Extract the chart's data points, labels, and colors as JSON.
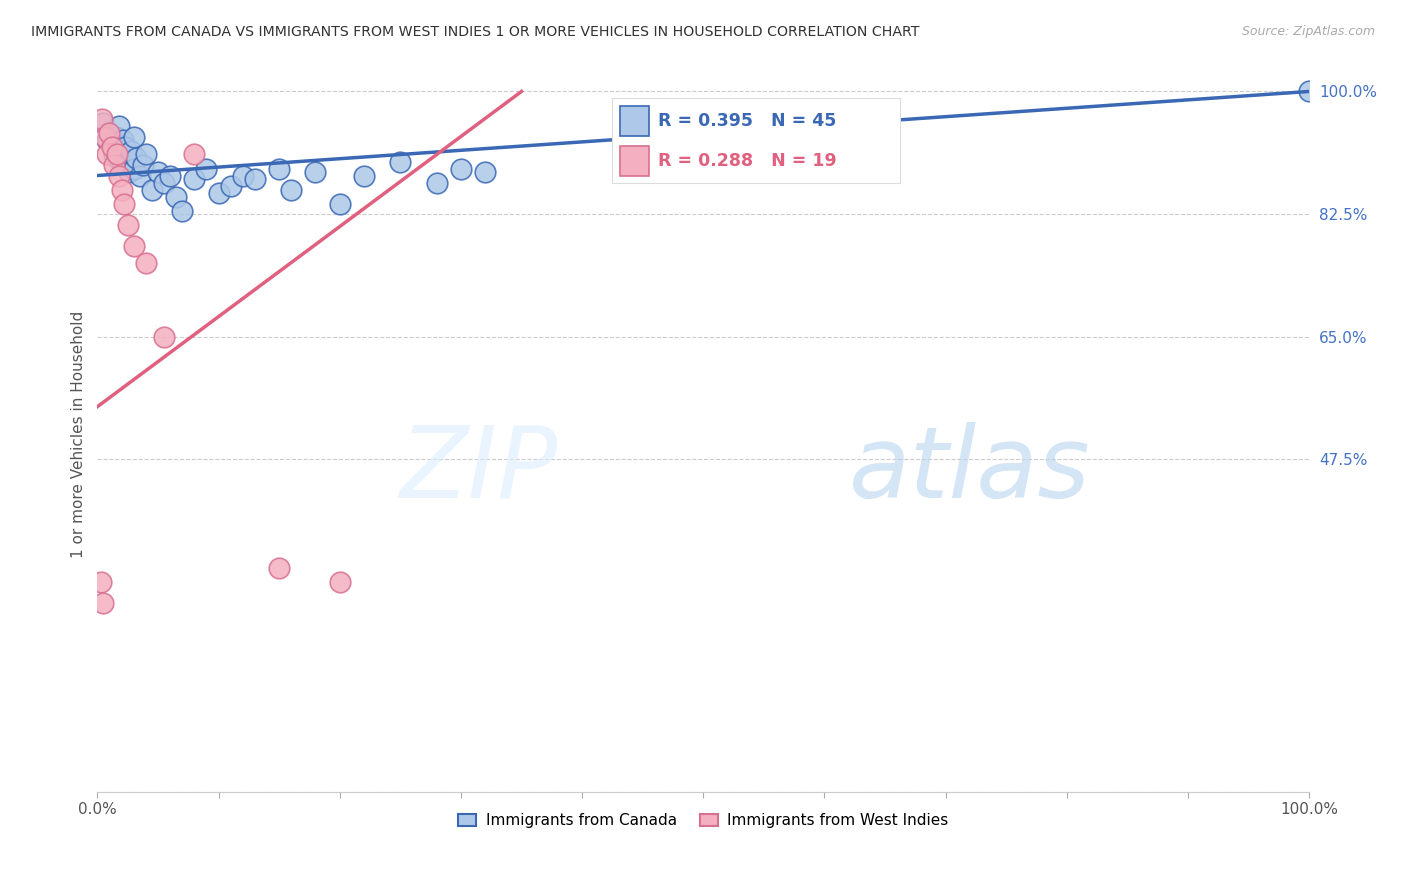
{
  "title": "IMMIGRANTS FROM CANADA VS IMMIGRANTS FROM WEST INDIES 1 OR MORE VEHICLES IN HOUSEHOLD CORRELATION CHART",
  "source": "Source: ZipAtlas.com",
  "ylabel": "1 or more Vehicles in Household",
  "legend_canada": "Immigrants from Canada",
  "legend_west_indies": "Immigrants from West Indies",
  "R_canada": 0.395,
  "N_canada": 45,
  "R_west_indies": 0.288,
  "N_west_indies": 19,
  "color_canada": "#adc8e8",
  "color_west_indies": "#f4b0c0",
  "line_color_canada": "#3a68b4",
  "line_color_west_indies": "#e06080",
  "watermark_zip": "ZIP",
  "watermark_atlas": "atlas",
  "canada_x": [
    0.5,
    0.8,
    1.0,
    1.2,
    1.4,
    1.5,
    1.6,
    1.7,
    1.8,
    1.9,
    2.0,
    2.1,
    2.2,
    2.3,
    2.5,
    2.6,
    2.8,
    3.0,
    3.0,
    3.2,
    3.5,
    3.8,
    4.0,
    4.5,
    5.0,
    5.5,
    6.0,
    6.5,
    7.0,
    8.0,
    9.0,
    10.0,
    11.0,
    12.0,
    13.0,
    15.0,
    16.0,
    18.0,
    20.0,
    22.0,
    25.0,
    28.0,
    30.0,
    32.0,
    100.0
  ],
  "canada_y": [
    95.5,
    93.0,
    94.0,
    92.5,
    91.0,
    93.5,
    90.5,
    92.0,
    95.0,
    91.5,
    90.0,
    93.0,
    91.0,
    92.0,
    90.0,
    88.5,
    91.5,
    89.0,
    93.5,
    90.5,
    88.0,
    89.5,
    91.0,
    86.0,
    88.5,
    87.0,
    88.0,
    85.0,
    83.0,
    87.5,
    89.0,
    85.5,
    86.5,
    88.0,
    87.5,
    89.0,
    86.0,
    88.5,
    84.0,
    88.0,
    90.0,
    87.0,
    89.0,
    88.5,
    100.0
  ],
  "west_indies_x": [
    0.4,
    0.6,
    0.8,
    1.0,
    1.2,
    1.4,
    1.6,
    1.8,
    2.0,
    2.2,
    2.5,
    3.0,
    4.0,
    5.5,
    8.0,
    15.0,
    20.0,
    0.3,
    0.5
  ],
  "west_indies_y": [
    96.0,
    93.5,
    91.0,
    94.0,
    92.0,
    89.5,
    91.0,
    88.0,
    86.0,
    84.0,
    81.0,
    78.0,
    75.5,
    65.0,
    91.0,
    32.0,
    30.0,
    30.0,
    27.0
  ],
  "yticks": [
    0.0,
    47.5,
    65.0,
    82.5,
    100.0
  ],
  "ylim_min": 0.0,
  "ylim_max": 102.0,
  "xlim_min": 0.0,
  "xlim_max": 100.0
}
